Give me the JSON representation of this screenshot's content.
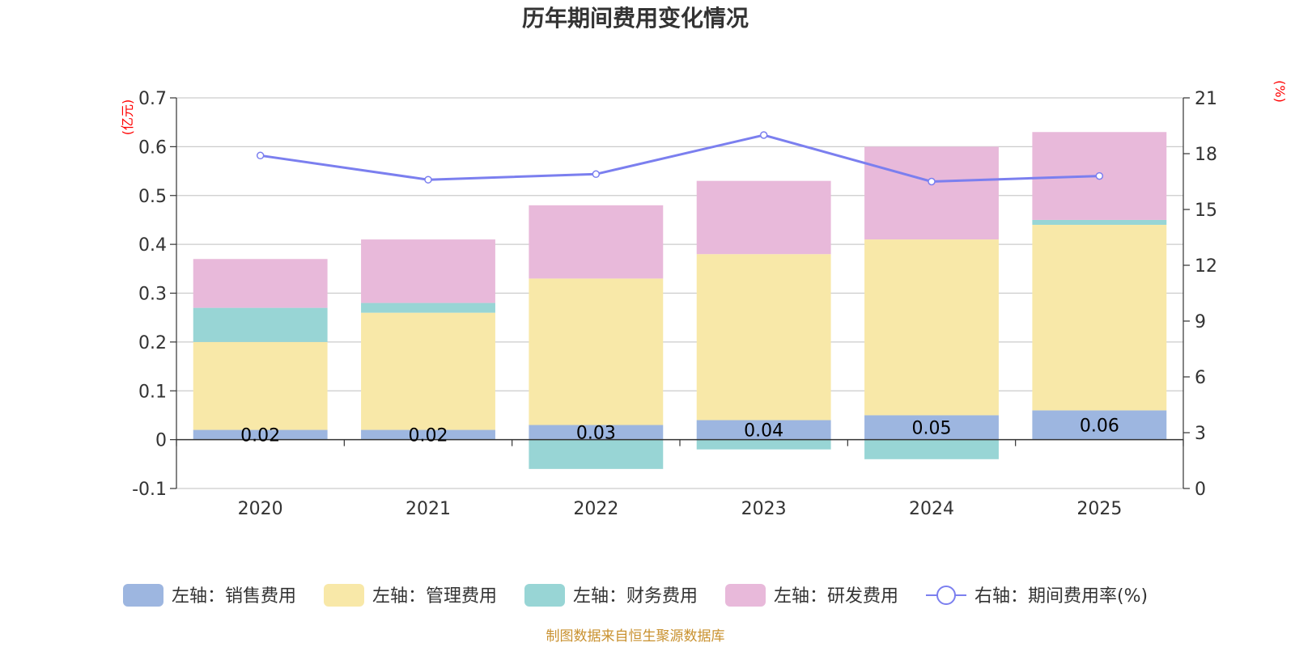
{
  "chart_data": {
    "type": "bar",
    "title": "历年期间费用变化情况",
    "categories": [
      "2020",
      "2021",
      "2022",
      "2023",
      "2024",
      "2025"
    ],
    "left_axis": {
      "unit": "(亿元)",
      "ylim": [
        -0.1,
        0.7
      ],
      "ticks": [
        "-0.1",
        "0",
        "0.1",
        "0.2",
        "0.3",
        "0.4",
        "0.5",
        "0.6",
        "0.7"
      ]
    },
    "right_axis": {
      "unit": "(%)",
      "ylim": [
        0,
        21
      ],
      "ticks": [
        "0",
        "3",
        "6",
        "9",
        "12",
        "15",
        "18",
        "21"
      ]
    },
    "series": [
      {
        "name": "左轴：销售费用",
        "color": "#9db6e0",
        "values": [
          0.02,
          0.02,
          0.03,
          0.04,
          0.05,
          0.06
        ],
        "labels": [
          "0.02",
          "0.02",
          "0.03",
          "0.04",
          "0.05",
          "0.06"
        ]
      },
      {
        "name": "左轴：管理费用",
        "color": "#f8e8a8",
        "values": [
          0.18,
          0.24,
          0.3,
          0.34,
          0.36,
          0.38
        ]
      },
      {
        "name": "左轴：财务费用",
        "color": "#98d5d5",
        "values": [
          0.07,
          0.02,
          -0.06,
          -0.02,
          -0.04,
          0.01
        ]
      },
      {
        "name": "左轴：研发费用",
        "color": "#e8b9da",
        "values": [
          0.1,
          0.13,
          0.15,
          0.15,
          0.19,
          0.18
        ]
      }
    ],
    "line_series": {
      "name": "右轴：期间费用率(%)",
      "color": "#7b7fef",
      "values": [
        17.9,
        16.6,
        16.9,
        19.0,
        16.5,
        16.8
      ]
    },
    "source": "制图数据来自恒生聚源数据库"
  }
}
